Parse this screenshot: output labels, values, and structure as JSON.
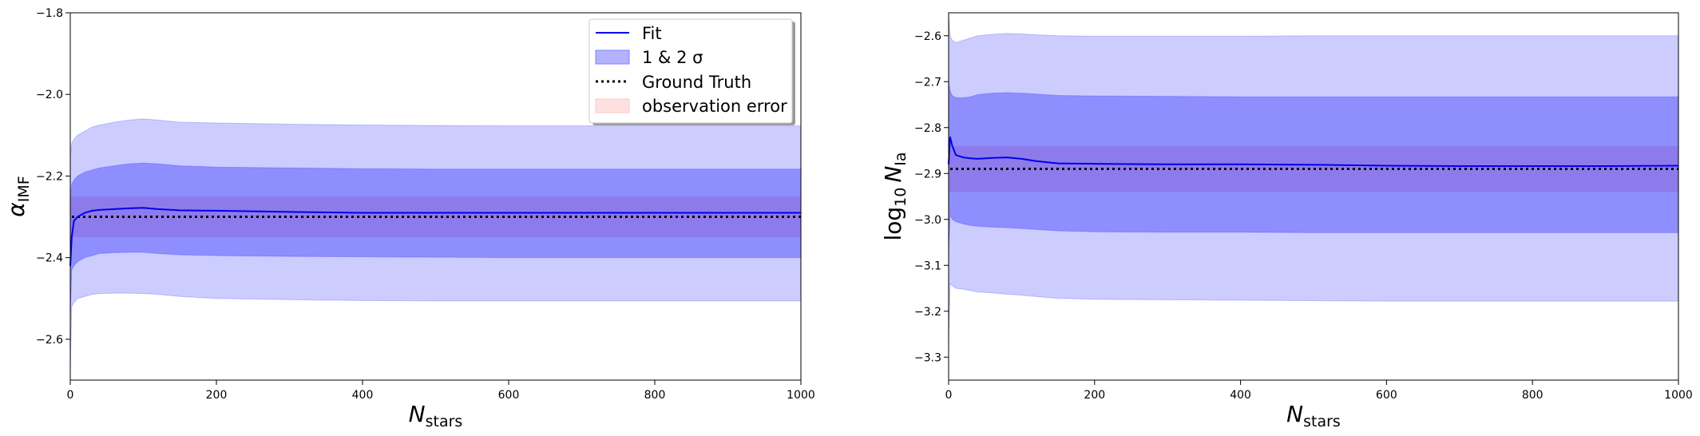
{
  "chart_data": [
    {
      "type": "line",
      "xlabel_main": "N",
      "xlabel_sub": "stars",
      "ylabel_main": "α",
      "ylabel_sub": "IMF",
      "xlim": [
        0,
        1000
      ],
      "ylim": [
        -2.7,
        -1.8
      ],
      "xticks": [
        0,
        200,
        400,
        600,
        800,
        1000
      ],
      "yticks": [
        -2.6,
        -2.4,
        -2.2,
        -2.0,
        -1.8
      ],
      "xtick_labels": [
        "0",
        "200",
        "400",
        "600",
        "800",
        "1000"
      ],
      "ytick_labels": [
        "−2.6",
        "−2.4",
        "−2.2",
        "−2.0",
        "−1.8"
      ],
      "ground_truth": -2.3,
      "observation_error": [
        -2.35,
        -2.25
      ],
      "fit": {
        "x": [
          0,
          2,
          5,
          10,
          20,
          30,
          40,
          60,
          80,
          100,
          120,
          150,
          200,
          300,
          400,
          500,
          600,
          700,
          800,
          900,
          1000
        ],
        "mean": [
          -2.42,
          -2.35,
          -2.31,
          -2.3,
          -2.29,
          -2.285,
          -2.283,
          -2.281,
          -2.279,
          -2.278,
          -2.281,
          -2.284,
          -2.285,
          -2.288,
          -2.29,
          -2.29,
          -2.29,
          -2.29,
          -2.29,
          -2.29,
          -2.29
        ],
        "sigma1_upper": [
          -2.25,
          -2.22,
          -2.21,
          -2.2,
          -2.19,
          -2.185,
          -2.18,
          -2.175,
          -2.17,
          -2.168,
          -2.17,
          -2.175,
          -2.178,
          -2.18,
          -2.182,
          -2.183,
          -2.183,
          -2.183,
          -2.183,
          -2.183,
          -2.183
        ],
        "sigma1_lower": [
          -2.55,
          -2.43,
          -2.42,
          -2.41,
          -2.4,
          -2.395,
          -2.39,
          -2.388,
          -2.387,
          -2.387,
          -2.39,
          -2.393,
          -2.395,
          -2.397,
          -2.398,
          -2.399,
          -2.4,
          -2.4,
          -2.4,
          -2.4,
          -2.4
        ],
        "sigma2_upper": [
          -2.15,
          -2.12,
          -2.11,
          -2.1,
          -2.09,
          -2.08,
          -2.075,
          -2.068,
          -2.063,
          -2.06,
          -2.063,
          -2.068,
          -2.07,
          -2.073,
          -2.075,
          -2.076,
          -2.077,
          -2.077,
          -2.077,
          -2.077,
          -2.077
        ],
        "sigma2_lower": [
          -2.68,
          -2.52,
          -2.51,
          -2.5,
          -2.495,
          -2.49,
          -2.488,
          -2.487,
          -2.487,
          -2.488,
          -2.49,
          -2.495,
          -2.5,
          -2.503,
          -2.505,
          -2.506,
          -2.506,
          -2.506,
          -2.506,
          -2.506,
          -2.506
        ]
      }
    },
    {
      "type": "line",
      "xlabel_main": "N",
      "xlabel_sub": "stars",
      "ylabel_main": "log",
      "ylabel_log_sub": "10",
      "ylabel_var": "N",
      "ylabel_sub": "Ia",
      "xlim": [
        0,
        1000
      ],
      "ylim": [
        -3.35,
        -2.55
      ],
      "xticks": [
        0,
        200,
        400,
        600,
        800,
        1000
      ],
      "yticks": [
        -3.3,
        -3.2,
        -3.1,
        -3.0,
        -2.9,
        -2.8,
        -2.7,
        -2.6
      ],
      "xtick_labels": [
        "0",
        "200",
        "400",
        "600",
        "800",
        "1000"
      ],
      "ytick_labels": [
        "−3.3",
        "−3.2",
        "−3.1",
        "−3.0",
        "−2.9",
        "−2.8",
        "−2.7",
        "−2.6"
      ],
      "ground_truth": -2.89,
      "observation_error": [
        -2.94,
        -2.84
      ],
      "fit": {
        "x": [
          0,
          2,
          5,
          10,
          20,
          30,
          40,
          60,
          80,
          100,
          120,
          150,
          200,
          300,
          400,
          500,
          600,
          700,
          800,
          900,
          1000
        ],
        "mean": [
          -2.88,
          -2.82,
          -2.84,
          -2.86,
          -2.865,
          -2.867,
          -2.868,
          -2.866,
          -2.865,
          -2.868,
          -2.873,
          -2.878,
          -2.879,
          -2.88,
          -2.88,
          -2.881,
          -2.883,
          -2.884,
          -2.884,
          -2.884,
          -2.883
        ],
        "sigma1_upper": [
          -2.7,
          -2.72,
          -2.73,
          -2.735,
          -2.735,
          -2.733,
          -2.728,
          -2.725,
          -2.724,
          -2.725,
          -2.727,
          -2.73,
          -2.731,
          -2.732,
          -2.733,
          -2.733,
          -2.733,
          -2.733,
          -2.733,
          -2.733,
          -2.733
        ],
        "sigma1_lower": [
          -3.08,
          -2.99,
          -3.0,
          -3.005,
          -3.01,
          -3.013,
          -3.015,
          -3.017,
          -3.018,
          -3.02,
          -3.022,
          -3.025,
          -3.027,
          -3.028,
          -3.028,
          -3.029,
          -3.029,
          -3.029,
          -3.029,
          -3.029,
          -3.029
        ],
        "sigma2_upper": [
          -2.55,
          -2.6,
          -2.61,
          -2.615,
          -2.61,
          -2.605,
          -2.6,
          -2.597,
          -2.595,
          -2.596,
          -2.598,
          -2.6,
          -2.601,
          -2.601,
          -2.601,
          -2.6,
          -2.6,
          -2.6,
          -2.6,
          -2.6,
          -2.6
        ],
        "sigma2_lower": [
          -3.28,
          -3.14,
          -3.145,
          -3.15,
          -3.152,
          -3.155,
          -3.158,
          -3.16,
          -3.163,
          -3.165,
          -3.168,
          -3.172,
          -3.174,
          -3.175,
          -3.176,
          -3.177,
          -3.178,
          -3.178,
          -3.178,
          -3.178,
          -3.178
        ]
      }
    }
  ],
  "legend": {
    "entries": [
      {
        "label": "Fit"
      },
      {
        "label": "1 & 2 σ"
      },
      {
        "label": "Ground Truth"
      },
      {
        "label": "observation error"
      }
    ]
  },
  "colors": {
    "fit": "#0000ee",
    "sigma1": "#6b6bff",
    "sigma2": "#cfcfff",
    "ground_truth": "#000000",
    "observation_error": "#ffb3b3"
  }
}
